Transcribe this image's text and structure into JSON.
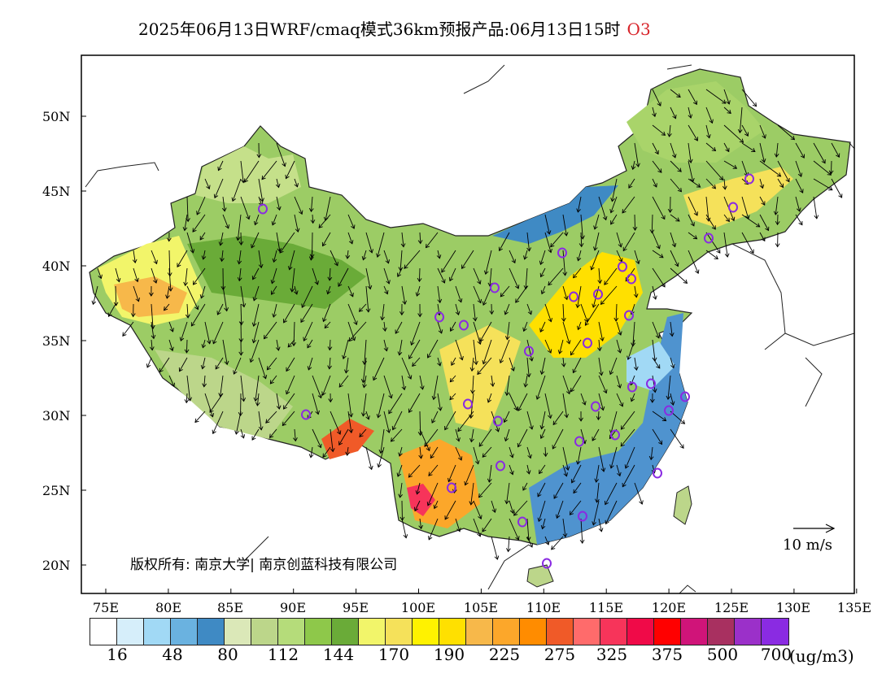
{
  "title": "2025年06月13日WRF/cmaq模式36km预报产品:06月13日15时",
  "species": "O3",
  "axes": {
    "lat_ticks": [
      "50N",
      "45N",
      "40N",
      "35N",
      "30N",
      "25N",
      "20N"
    ],
    "lon_ticks": [
      "75E",
      "80E",
      "85E",
      "90E",
      "95E",
      "100E",
      "105E",
      "110E",
      "115E",
      "120E",
      "125E",
      "130E",
      "135E"
    ]
  },
  "copyright": "版权所有: 南京大学| 南京创蓝科技有限公司",
  "wind_scale_label": "10 m/s",
  "legend": {
    "colors": [
      "#ffffff",
      "#d6eefa",
      "#a1d9f5",
      "#6ab2e0",
      "#3f8ac4",
      "#dbe8b8",
      "#bcd68a",
      "#b5dc7a",
      "#8ec84a",
      "#6aab38",
      "#f2f56a",
      "#f5e15a",
      "#fff200",
      "#ffe000",
      "#f7b84a",
      "#fca72a",
      "#ff8c00",
      "#f05a28",
      "#ff6b6b",
      "#f7345a",
      "#f00a48",
      "#ff0000",
      "#d01479",
      "#a83060",
      "#9b30c9",
      "#8a2be2"
    ],
    "levels": [
      "16",
      "48",
      "80",
      "112",
      "144",
      "170",
      "190",
      "225",
      "275",
      "325",
      "375",
      "500",
      "700"
    ],
    "unit": "(ug/m3)"
  },
  "stations_color": "#8a2be2"
}
